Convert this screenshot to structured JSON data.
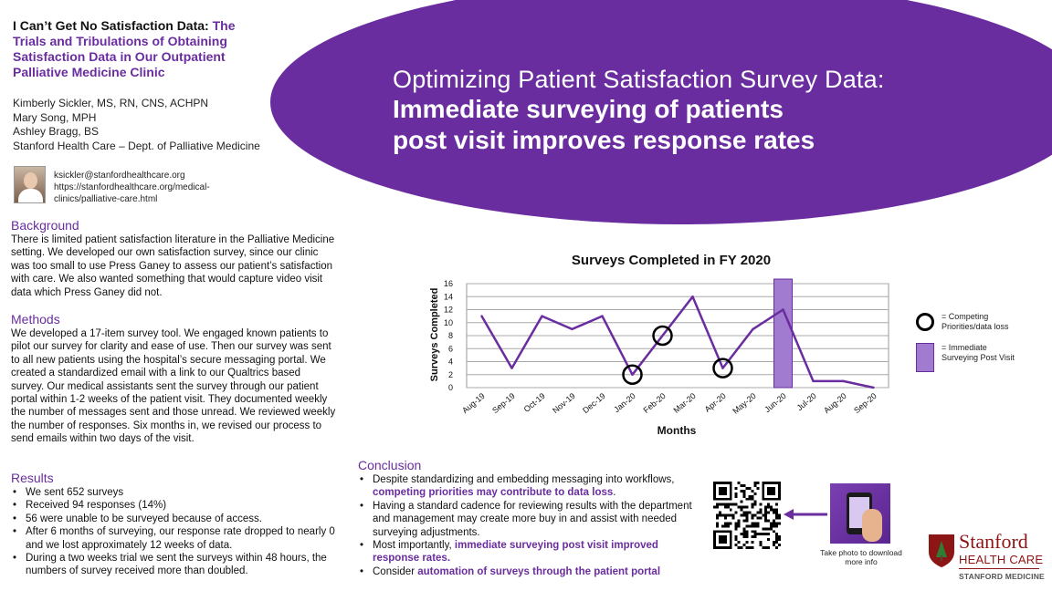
{
  "title": {
    "main": "I Can’t Get No Satisfaction Data:",
    "sub": "The Trials and Tribulations of Obtaining Satisfaction Data in Our Outpatient Palliative Medicine Clinic"
  },
  "authors": [
    "Kimberly Sickler, MS, RN, CNS, ACHPN",
    "Mary Song, MPH",
    "Ashley Bragg, BS",
    "Stanford Health Care – Dept. of Palliative Medicine"
  ],
  "contact": {
    "email": "ksickler@stanfordhealthcare.org",
    "url_line1": "https://stanfordhealthcare.org/medical-",
    "url_line2": "clinics/palliative-care.html"
  },
  "banner": {
    "line1": "Optimizing Patient Satisfaction Survey Data:",
    "line2": "Immediate surveying of patients",
    "line3": "post visit improves response rates"
  },
  "background": {
    "heading": "Background",
    "text": "There is limited patient satisfaction literature in the Palliative Medicine setting. We developed our own satisfaction survey, since our clinic was too small to use Press Ganey to assess our patient’s satisfaction with care. We also wanted something that would capture video visit data which Press Ganey did not."
  },
  "methods": {
    "heading": "Methods",
    "text": "We developed a 17-item survey tool. We engaged known patients to pilot our survey for clarity and ease of use. Then our survey was sent to all new patients using the hospital’s secure messaging portal. We created a standardized email with a link to our Qualtrics based survey. Our medical assistants sent the survey through our patient portal within 1-2 weeks of the patient visit. They documented weekly the number of messages sent and those unread.  We reviewed weekly the number of responses. Six months in, we revised our process to send emails within two days of the visit."
  },
  "results": {
    "heading": "Results",
    "items": [
      "We sent 652 surveys",
      "Received 94 responses (14%)",
      "56 were unable to be surveyed because of access.",
      "After 6 months of surveying, our response rate dropped to nearly 0 and we lost approximately 12 weeks of data.",
      "During a two weeks trial we sent the surveys within 48 hours, the numbers of survey received more than doubled."
    ]
  },
  "conclusion": {
    "heading": "Conclusion",
    "item1_text": "Despite standardizing and embedding messaging into workflows,",
    "item1_em": "competing priorities may contribute to data loss",
    "item1_end": ".",
    "item2_text": "Having a standard cadence for reviewing results with the department and management may create more buy in and assist with needed surveying adjustments.",
    "item3_text": "Most importantly,",
    "item3_em": "immediate surveying post visit improved response rates.",
    "item4_text": "Consider",
    "item4_em": "automation of surveys through the patient portal"
  },
  "legend": {
    "circle_label": "= Competing Priorities/data loss",
    "bar_label": "= Immediate Surveying Post Visit"
  },
  "take_photo": "Take photo to download more info",
  "logo": {
    "name": "Stanford",
    "line2": "HEALTH CARE",
    "line3": "STANFORD MEDICINE"
  },
  "colors": {
    "accent": "#6a2d9f",
    "highlight_bar": "#a07bcf",
    "brand_red": "#8c1515"
  },
  "chart_data": {
    "type": "line",
    "title": "Surveys Completed in FY 2020",
    "xlabel": "Months",
    "ylabel": "Surveys Completed",
    "ylim": [
      0,
      16
    ],
    "yticks": [
      0,
      2,
      4,
      6,
      8,
      10,
      12,
      14,
      16
    ],
    "grid": true,
    "legend_position": "right",
    "categories": [
      "Aug-19",
      "Sep-19",
      "Oct-19",
      "Nov-19",
      "Dec-19",
      "Jan-20",
      "Feb-20",
      "Mar-20",
      "Apr-20",
      "May-20",
      "Jun-20",
      "Jul-20",
      "Aug-20",
      "Sep-20"
    ],
    "series": [
      {
        "values": [
          11,
          3,
          11,
          9,
          11,
          2,
          8,
          14,
          3,
          9,
          12,
          1,
          1,
          0
        ]
      }
    ],
    "circled_points": [
      "Jan-20",
      "Feb-20",
      "Apr-20"
    ],
    "highlighted_category": "Jun-20"
  }
}
